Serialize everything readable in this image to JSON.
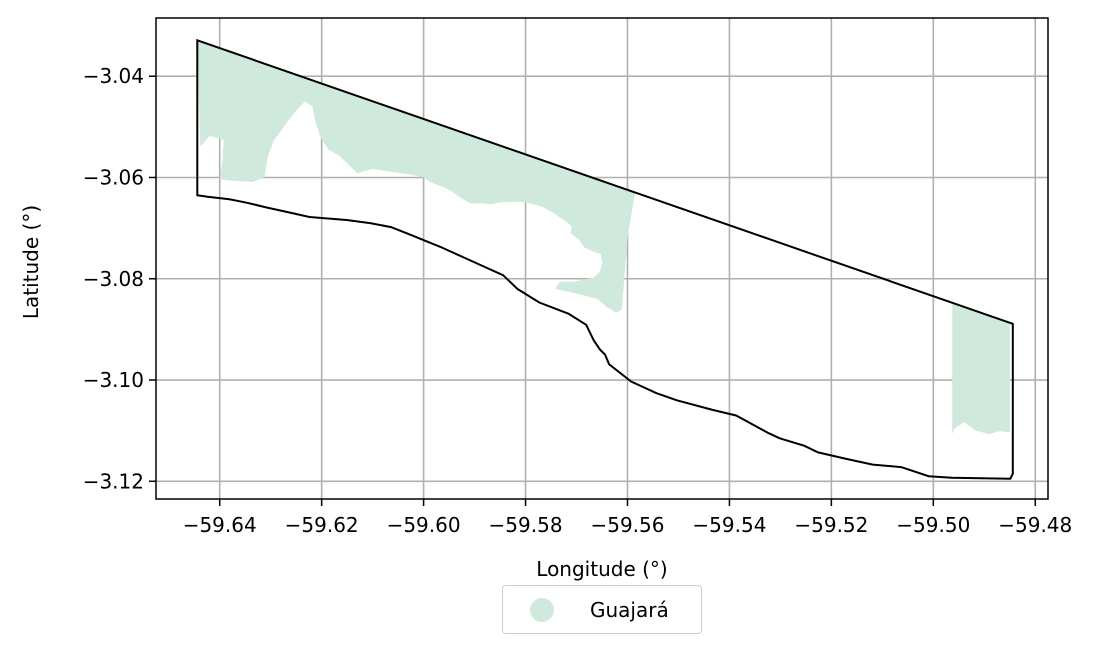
{
  "chart_data": {
    "type": "map",
    "xlabel": "Longitude (°)",
    "ylabel": "Latitude (°)",
    "xlim": [
      -59.6525,
      -59.4775
    ],
    "ylim": [
      -3.1235,
      -3.0285
    ],
    "x_ticks": [
      -59.64,
      -59.62,
      -59.6,
      -59.58,
      -59.56,
      -59.54,
      -59.52,
      -59.5,
      -59.48
    ],
    "x_tick_labels": [
      "−59.64",
      "−59.62",
      "−59.60",
      "−59.58",
      "−59.56",
      "−59.54",
      "−59.52",
      "−59.50",
      "−59.48"
    ],
    "y_ticks": [
      -3.04,
      -3.06,
      -3.08,
      -3.1,
      -3.12
    ],
    "y_tick_labels": [
      "−3.04",
      "−3.06",
      "−3.08",
      "−3.10",
      "−3.12"
    ],
    "grid": true,
    "legend_position": "bottom-center",
    "legend": [
      {
        "label": "Guajará",
        "color": "#cfeadd"
      }
    ],
    "boundary": [
      [
        -59.6444,
        -3.0329
      ],
      [
        -59.4844,
        -3.0889
      ],
      [
        -59.4844,
        -3.1185
      ],
      [
        -59.4849,
        -3.1195
      ],
      [
        -59.4964,
        -3.1193
      ],
      [
        -59.5009,
        -3.119
      ],
      [
        -59.5063,
        -3.1172
      ],
      [
        -59.5119,
        -3.1167
      ],
      [
        -59.5174,
        -3.1155
      ],
      [
        -59.5226,
        -3.1143
      ],
      [
        -59.5253,
        -3.113
      ],
      [
        -59.5302,
        -3.1115
      ],
      [
        -59.5323,
        -3.1105
      ],
      [
        -59.5387,
        -3.107
      ],
      [
        -59.5433,
        -3.1059
      ],
      [
        -59.5503,
        -3.104
      ],
      [
        -59.5543,
        -3.1026
      ],
      [
        -59.5593,
        -3.1003
      ],
      [
        -59.5636,
        -3.0969
      ],
      [
        -59.5644,
        -3.095
      ],
      [
        -59.5654,
        -3.094
      ],
      [
        -59.5666,
        -3.0922
      ],
      [
        -59.5681,
        -3.0891
      ],
      [
        -59.5716,
        -3.0869
      ],
      [
        -59.5773,
        -3.0847
      ],
      [
        -59.5816,
        -3.082
      ],
      [
        -59.5844,
        -3.0793
      ],
      [
        -59.5908,
        -3.0764
      ],
      [
        -59.5967,
        -3.0737
      ],
      [
        -59.6031,
        -3.0711
      ],
      [
        -59.6064,
        -3.0698
      ],
      [
        -59.6105,
        -3.069
      ],
      [
        -59.6151,
        -3.0684
      ],
      [
        -59.6224,
        -3.0678
      ],
      [
        -59.626,
        -3.067
      ],
      [
        -59.6309,
        -3.0659
      ],
      [
        -59.6346,
        -3.065
      ],
      [
        -59.6381,
        -3.0643
      ],
      [
        -59.6424,
        -3.0638
      ],
      [
        -59.6444,
        -3.0635
      ],
      [
        -59.6444,
        -3.0329
      ]
    ],
    "regions": [
      {
        "name": "Guajará",
        "polygon": [
          [
            -59.6444,
            -3.0329
          ],
          [
            -59.5585,
            -3.0629
          ],
          [
            -59.56,
            -3.0718
          ],
          [
            -59.5611,
            -3.0861
          ],
          [
            -59.5622,
            -3.0867
          ],
          [
            -59.564,
            -3.0856
          ],
          [
            -59.5659,
            -3.084
          ],
          [
            -59.5697,
            -3.083
          ],
          [
            -59.5742,
            -3.082
          ],
          [
            -59.5733,
            -3.0806
          ],
          [
            -59.5705,
            -3.0806
          ],
          [
            -59.5684,
            -3.0801
          ],
          [
            -59.5667,
            -3.0798
          ],
          [
            -59.5655,
            -3.0787
          ],
          [
            -59.5649,
            -3.0768
          ],
          [
            -59.5653,
            -3.0751
          ],
          [
            -59.5666,
            -3.0747
          ],
          [
            -59.5685,
            -3.0738
          ],
          [
            -59.5696,
            -3.0722
          ],
          [
            -59.5712,
            -3.071
          ],
          [
            -59.5709,
            -3.0697
          ],
          [
            -59.5722,
            -3.0686
          ],
          [
            -59.5744,
            -3.0671
          ],
          [
            -59.5767,
            -3.0658
          ],
          [
            -59.5795,
            -3.065
          ],
          [
            -59.5811,
            -3.0648
          ],
          [
            -59.5849,
            -3.0649
          ],
          [
            -59.5868,
            -3.0653
          ],
          [
            -59.5887,
            -3.0651
          ],
          [
            -59.5909,
            -3.0651
          ],
          [
            -59.5929,
            -3.0639
          ],
          [
            -59.5944,
            -3.0628
          ],
          [
            -59.5958,
            -3.062
          ],
          [
            -59.5985,
            -3.061
          ],
          [
            -59.6,
            -3.06
          ],
          [
            -59.6026,
            -3.0594
          ],
          [
            -59.607,
            -3.0588
          ],
          [
            -59.61,
            -3.0583
          ],
          [
            -59.613,
            -3.0592
          ],
          [
            -59.6144,
            -3.0578
          ],
          [
            -59.6164,
            -3.0558
          ],
          [
            -59.6187,
            -3.0545
          ],
          [
            -59.6203,
            -3.0519
          ],
          [
            -59.6213,
            -3.0486
          ],
          [
            -59.6218,
            -3.046
          ],
          [
            -59.6233,
            -3.045
          ],
          [
            -59.6249,
            -3.0467
          ],
          [
            -59.6266,
            -3.0488
          ],
          [
            -59.6281,
            -3.051
          ],
          [
            -59.6294,
            -3.0527
          ],
          [
            -59.6306,
            -3.056
          ],
          [
            -59.6312,
            -3.0599
          ],
          [
            -59.6335,
            -3.0609
          ],
          [
            -59.638,
            -3.0606
          ],
          [
            -59.64,
            -3.0604
          ],
          [
            -59.6395,
            -3.057
          ],
          [
            -59.6394,
            -3.0551
          ],
          [
            -59.6392,
            -3.0526
          ],
          [
            -59.642,
            -3.0518
          ],
          [
            -59.6438,
            -3.0539
          ],
          [
            -59.6444,
            -3.0329
          ]
        ]
      },
      {
        "name": "Guajará",
        "polygon": [
          [
            -59.4963,
            -3.0847
          ],
          [
            -59.485,
            -3.0889
          ],
          [
            -59.485,
            -3.1103
          ],
          [
            -59.4871,
            -3.1101
          ],
          [
            -59.4891,
            -3.1107
          ],
          [
            -59.4919,
            -3.1099
          ],
          [
            -59.4939,
            -3.1083
          ],
          [
            -59.4959,
            -3.1096
          ],
          [
            -59.4963,
            -3.1107
          ],
          [
            -59.4963,
            -3.0847
          ]
        ]
      }
    ]
  }
}
